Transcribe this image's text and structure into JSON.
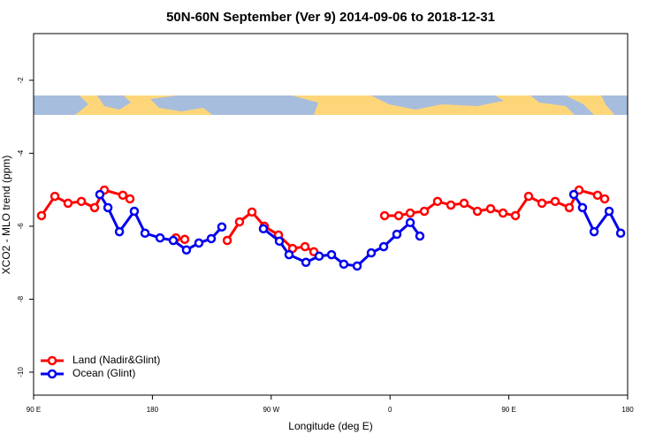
{
  "chart_data": {
    "type": "line",
    "title": "50N-60N September (Ver 9)   2014-09-06 to 2018-12-31",
    "x_label": "Longitude (deg E)",
    "y_label": "XCO2 - MLO trend (ppm)",
    "xlim": [
      90,
      540
    ],
    "ylim": [
      -10.63,
      -0.72
    ],
    "xticks": [
      {
        "value": 90,
        "label": "90 E"
      },
      180,
      {
        "value": 270,
        "label": "90 W"
      },
      {
        "value": 360,
        "label": "0"
      },
      {
        "value": 450,
        "label": "90 E"
      },
      {
        "value": 540,
        "label": "180"
      }
    ],
    "yticks": [
      -2,
      -4,
      -6,
      -8,
      -10
    ],
    "legend": "bottom-left",
    "series": [
      {
        "name": "Land (Nadir&Glint)",
        "color": "#ff0000",
        "x": [
          96.0,
          106.1,
          116.1,
          126.2,
          136.2,
          143.6,
          157.6,
          163.0,
          null,
          197.8,
          204.5,
          null,
          236.7,
          246.0,
          255.4,
          264.8,
          275.5,
          286.2,
          295.6,
          302.3,
          null,
          355.9,
          366.6,
          375.3,
          386.0,
          396.0,
          406.1,
          416.1,
          426.2,
          436.2,
          445.6,
          455.0,
          465.0,
          475.1,
          485.1,
          495.8,
          503.2,
          517.2,
          522.6
        ],
        "values": [
          -5.71,
          -5.18,
          -5.37,
          -5.32,
          -5.49,
          -5.01,
          -5.15,
          -5.25,
          null,
          -6.32,
          -6.36,
          null,
          -6.39,
          -5.88,
          -5.61,
          -6.0,
          -6.24,
          -6.61,
          -6.56,
          -6.7,
          null,
          -5.71,
          -5.71,
          -5.64,
          -5.59,
          -5.32,
          -5.42,
          -5.37,
          -5.59,
          -5.52,
          -5.64,
          -5.71,
          -5.18,
          -5.37,
          -5.32,
          -5.49,
          -5.01,
          -5.15,
          -5.25
        ]
      },
      {
        "name": "Ocean (Glint)",
        "color": "#0000ee",
        "x": [
          140.2,
          146.3,
          155.0,
          166.3,
          174.4,
          185.8,
          195.8,
          205.8,
          215.2,
          224.6,
          232.6,
          null,
          264.1,
          276.2,
          283.5,
          296.3,
          306.3,
          315.7,
          325.0,
          335.1,
          345.8,
          355.2,
          365.2,
          375.3,
          382.6,
          null,
          499.2,
          505.8,
          514.6,
          526.0,
          534.7
        ],
        "values": [
          -5.13,
          -5.49,
          -6.15,
          -5.59,
          -6.19,
          -6.32,
          -6.39,
          -6.65,
          -6.46,
          -6.34,
          -6.02,
          null,
          -6.07,
          -6.41,
          -6.78,
          -6.99,
          -6.82,
          -6.78,
          -7.04,
          -7.09,
          -6.73,
          -6.56,
          -6.22,
          -5.9,
          -6.27,
          null,
          -5.13,
          -5.49,
          -6.15,
          -5.59,
          -6.19
        ]
      }
    ]
  }
}
